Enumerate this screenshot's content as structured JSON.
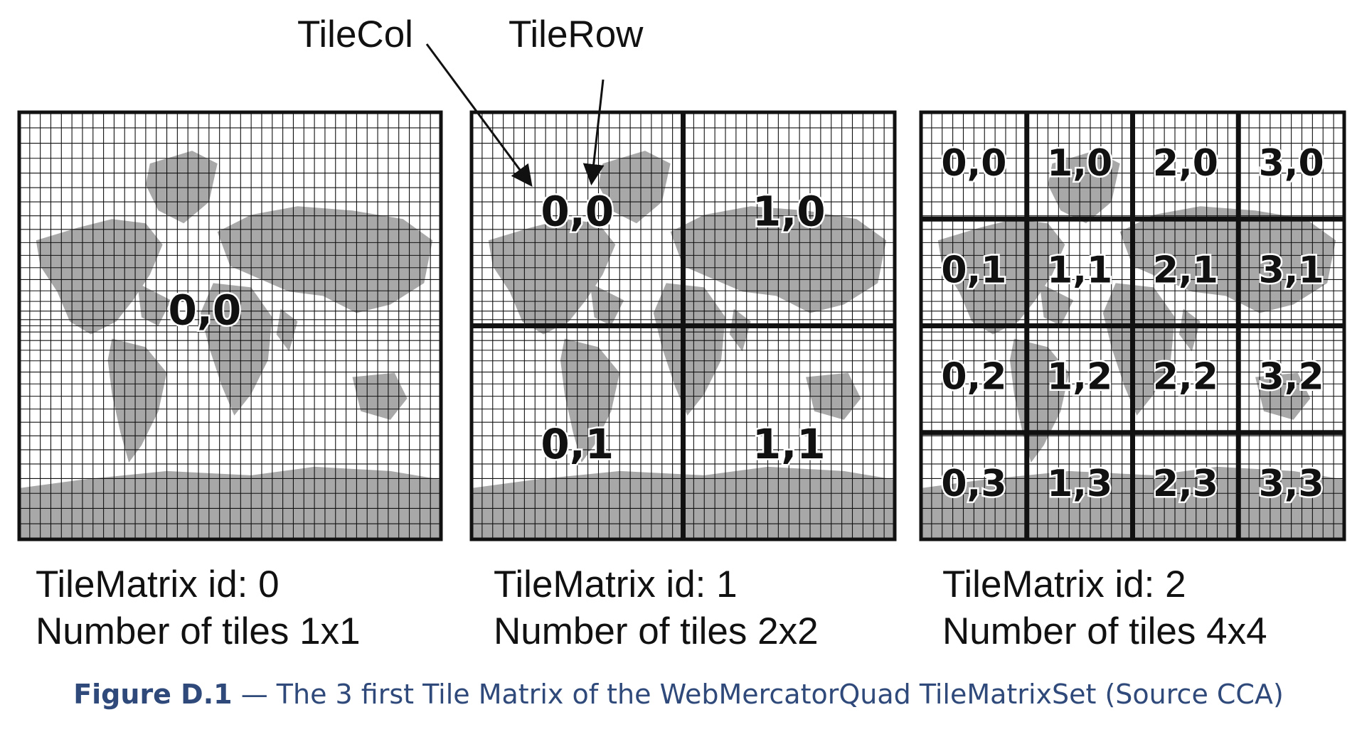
{
  "annotations": {
    "tile_col": "TileCol",
    "tile_row": "TileRow"
  },
  "matrices": [
    {
      "id_label": "TileMatrix id: 0",
      "tiles_label": "Number of tiles 1x1",
      "n": 1,
      "tiles": [
        "0,0"
      ]
    },
    {
      "id_label": "TileMatrix id: 1",
      "tiles_label": "Number of tiles 2x2",
      "n": 2,
      "tiles": [
        "0,0",
        "1,0",
        "0,1",
        "1,1"
      ]
    },
    {
      "id_label": "TileMatrix id: 2",
      "tiles_label": "Number of tiles 4x4",
      "n": 4,
      "tiles": [
        "0,0",
        "1,0",
        "2,0",
        "3,0",
        "0,1",
        "1,1",
        "2,1",
        "3,1",
        "0,2",
        "1,2",
        "2,2",
        "3,2",
        "0,3",
        "1,3",
        "2,3",
        "3,3"
      ]
    }
  ],
  "caption": {
    "figure": "Figure D.1",
    "text": " — The 3 first Tile Matrix of the WebMercatorQuad TileMatrixSet (Source CCA)"
  },
  "colors": {
    "land": "#a8a8a8",
    "grid": "#111111",
    "caption": "#2f4a7a"
  }
}
